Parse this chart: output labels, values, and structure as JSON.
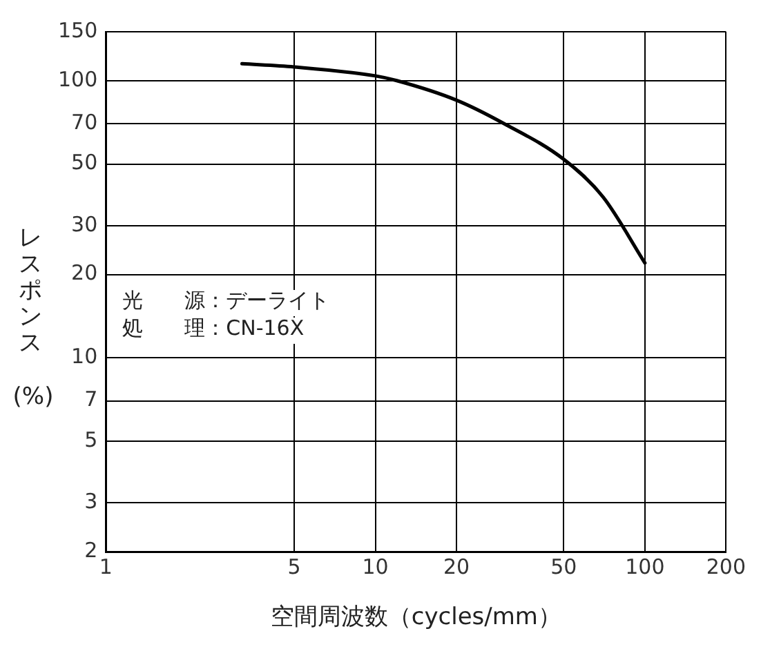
{
  "chart_data": {
    "type": "line",
    "xlabel": "空間周波数（cycles/mm）",
    "ylabel": "レスポンス (%)",
    "x": [
      3.2,
      5,
      10,
      12,
      20,
      30,
      50,
      70,
      100
    ],
    "series": [
      {
        "color": "#000000",
        "values": [
          115,
          112,
          104,
          100,
          85,
          70,
          52,
          38,
          22
        ]
      }
    ],
    "log": "xy",
    "xlim": [
      1,
      200
    ],
    "xticks": [
      1,
      5,
      10,
      20,
      50,
      100,
      200
    ],
    "ylim": [
      2,
      150
    ],
    "yticks": [
      2,
      3,
      5,
      7,
      10,
      20,
      30,
      50,
      70,
      100,
      150
    ],
    "grid": true,
    "legend": false,
    "marker": "none",
    "line_style": "solid",
    "annotations": [
      "光　　源：デーライト",
      "処　　理：CN-16X"
    ]
  }
}
